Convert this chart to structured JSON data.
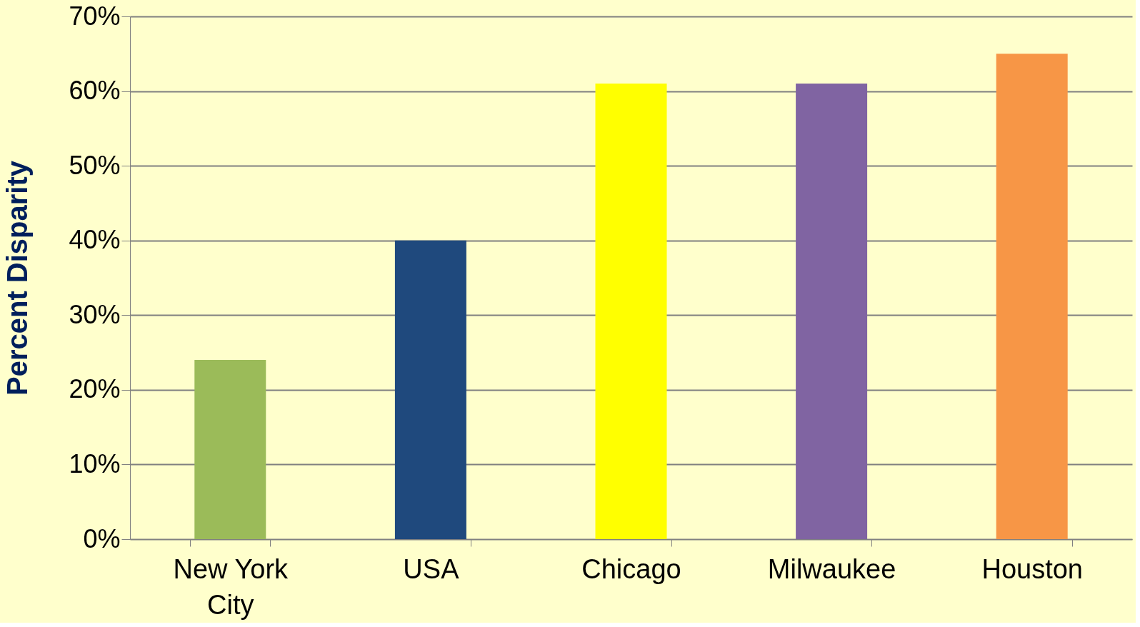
{
  "chart_data": {
    "type": "bar",
    "ylabel": "Percent Disparity",
    "categories": [
      "New York City",
      "USA",
      "Chicago",
      "Milwaukee",
      "Houston"
    ],
    "values": [
      24,
      40,
      61,
      61,
      65
    ],
    "colors": [
      "#9bbb59",
      "#1f497d",
      "#ffff00",
      "#8064a2",
      "#f79646"
    ],
    "ylim": [
      0,
      70
    ],
    "yticks": [
      {
        "value": 0,
        "label": "0%"
      },
      {
        "value": 10,
        "label": "10%"
      },
      {
        "value": 20,
        "label": "20%"
      },
      {
        "value": 30,
        "label": "30%"
      },
      {
        "value": 40,
        "label": "40%"
      },
      {
        "value": 50,
        "label": "50%"
      },
      {
        "value": 60,
        "label": "60%"
      },
      {
        "value": 70,
        "label": "70%"
      }
    ],
    "grid": "y"
  }
}
